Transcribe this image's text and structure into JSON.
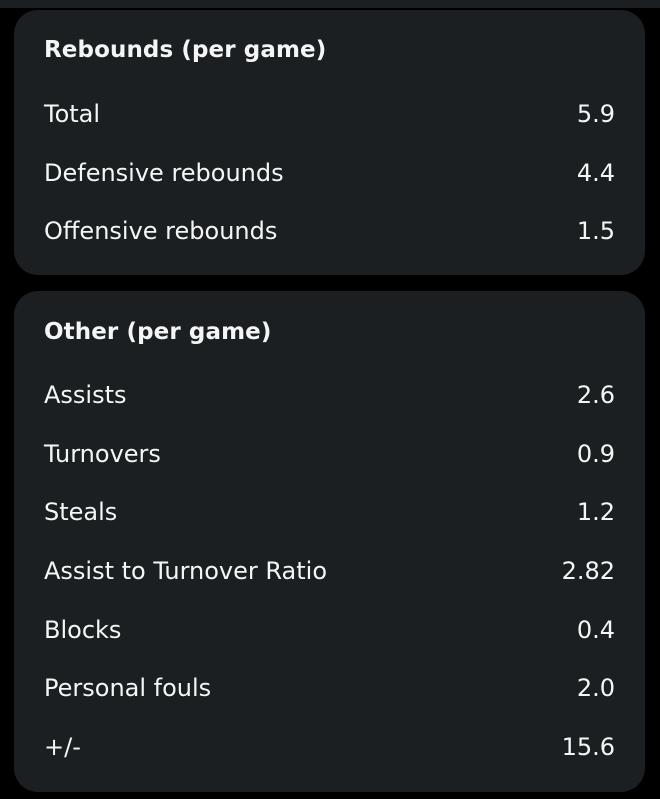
{
  "rebounds": {
    "title": "Rebounds (per game)",
    "rows": [
      {
        "label": "Total",
        "value": "5.9"
      },
      {
        "label": "Defensive rebounds",
        "value": "4.4"
      },
      {
        "label": "Offensive rebounds",
        "value": "1.5"
      }
    ]
  },
  "other": {
    "title": "Other (per game)",
    "rows": [
      {
        "label": "Assists",
        "value": "2.6"
      },
      {
        "label": "Turnovers",
        "value": "0.9"
      },
      {
        "label": "Steals",
        "value": "1.2"
      },
      {
        "label": "Assist to Turnover Ratio",
        "value": "2.82"
      },
      {
        "label": "Blocks",
        "value": "0.4"
      },
      {
        "label": "Personal fouls",
        "value": "2.0"
      },
      {
        "label": "+/-",
        "value": "15.6"
      }
    ]
  },
  "colors": {
    "background": "#000000",
    "card": "#1b1f21",
    "text": "#f4f6f6"
  }
}
